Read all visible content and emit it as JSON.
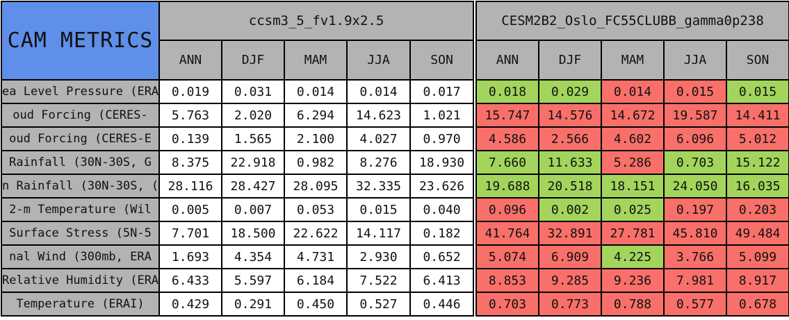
{
  "table": {
    "corner_label": "CAM METRICS",
    "seasons": [
      "ANN",
      "DJF",
      "MAM",
      "JJA",
      "SON"
    ],
    "row_labels": [
      "ea Level Pressure (ERA",
      "oud Forcing (CERES-",
      "oud Forcing (CERES-E",
      "Rainfall (30N-30S, G",
      "n Rainfall (30N-30S, (",
      "2-m Temperature (Wil",
      "Surface Stress (5N-5",
      "nal Wind (300mb, ERA",
      "Relative Humidity (ERAI",
      "Temperature (ERAI)"
    ],
    "model1": {
      "name": "ccsm3_5_fv1.9x2.5",
      "rows": [
        [
          "0.019",
          "0.031",
          "0.014",
          "0.014",
          "0.017"
        ],
        [
          "5.763",
          "2.020",
          "6.294",
          "14.623",
          "1.021"
        ],
        [
          "0.139",
          "1.565",
          "2.100",
          "4.027",
          "0.970"
        ],
        [
          "8.375",
          "22.918",
          "0.982",
          "8.276",
          "18.930"
        ],
        [
          "28.116",
          "28.427",
          "28.095",
          "32.335",
          "23.626"
        ],
        [
          "0.005",
          "0.007",
          "0.053",
          "0.015",
          "0.040"
        ],
        [
          "7.701",
          "18.500",
          "22.622",
          "14.117",
          "0.182"
        ],
        [
          "1.693",
          "4.354",
          "4.731",
          "2.930",
          "0.652"
        ],
        [
          "6.433",
          "5.597",
          "6.184",
          "7.522",
          "6.413"
        ],
        [
          "0.429",
          "0.291",
          "0.450",
          "0.527",
          "0.446"
        ]
      ]
    },
    "model2": {
      "name": "CESM2B2_Oslo_FC55CLUBB_gamma0p238",
      "rows": [
        [
          "0.018",
          "0.029",
          "0.014",
          "0.015",
          "0.015"
        ],
        [
          "15.747",
          "14.576",
          "14.672",
          "19.587",
          "14.411"
        ],
        [
          "4.586",
          "2.566",
          "4.602",
          "6.096",
          "5.012"
        ],
        [
          "7.660",
          "11.633",
          "5.286",
          "0.703",
          "15.122"
        ],
        [
          "19.688",
          "20.518",
          "18.151",
          "24.050",
          "16.035"
        ],
        [
          "0.096",
          "0.002",
          "0.025",
          "0.197",
          "0.203"
        ],
        [
          "41.764",
          "32.891",
          "27.781",
          "45.810",
          "49.484"
        ],
        [
          "5.074",
          "6.909",
          "4.225",
          "3.766",
          "5.099"
        ],
        [
          "8.853",
          "9.285",
          "9.236",
          "7.981",
          "8.917"
        ],
        [
          "0.703",
          "0.773",
          "0.788",
          "0.577",
          "0.678"
        ]
      ],
      "cell_colors": [
        [
          "g",
          "g",
          "r",
          "r",
          "g"
        ],
        [
          "r",
          "r",
          "r",
          "r",
          "r"
        ],
        [
          "r",
          "r",
          "r",
          "r",
          "r"
        ],
        [
          "g",
          "g",
          "r",
          "g",
          "g"
        ],
        [
          "g",
          "g",
          "g",
          "g",
          "g"
        ],
        [
          "r",
          "g",
          "g",
          "r",
          "r"
        ],
        [
          "r",
          "r",
          "r",
          "r",
          "r"
        ],
        [
          "r",
          "r",
          "g",
          "r",
          "r"
        ],
        [
          "r",
          "r",
          "r",
          "r",
          "r"
        ],
        [
          "r",
          "r",
          "r",
          "r",
          "r"
        ]
      ]
    }
  },
  "colors": {
    "header_bg": "#b3b3b3",
    "title_bg": "#5f8fe8",
    "good_bg": "#a3d55c",
    "bad_bg": "#f9706a",
    "neutral_bg": "#ffffff",
    "border": "#000000"
  },
  "chart_data": {
    "type": "table",
    "title": "CAM METRICS",
    "column_groups": [
      "ccsm3_5_fv1.9x2.5",
      "CESM2B2_Oslo_FC55CLUBB_gamma0p238"
    ],
    "columns": [
      "ANN",
      "DJF",
      "MAM",
      "JJA",
      "SON",
      "ANN",
      "DJF",
      "MAM",
      "JJA",
      "SON"
    ],
    "rows": [
      {
        "label": "ea Level Pressure (ERA",
        "values": [
          0.019,
          0.031,
          0.014,
          0.014,
          0.017,
          0.018,
          0.029,
          0.014,
          0.015,
          0.015
        ]
      },
      {
        "label": "oud Forcing (CERES-",
        "values": [
          5.763,
          2.02,
          6.294,
          14.623,
          1.021,
          15.747,
          14.576,
          14.672,
          19.587,
          14.411
        ]
      },
      {
        "label": "oud Forcing (CERES-E",
        "values": [
          0.139,
          1.565,
          2.1,
          4.027,
          0.97,
          4.586,
          2.566,
          4.602,
          6.096,
          5.012
        ]
      },
      {
        "label": "Rainfall (30N-30S, G",
        "values": [
          8.375,
          22.918,
          0.982,
          8.276,
          18.93,
          7.66,
          11.633,
          5.286,
          0.703,
          15.122
        ]
      },
      {
        "label": "n Rainfall (30N-30S, (",
        "values": [
          28.116,
          28.427,
          28.095,
          32.335,
          23.626,
          19.688,
          20.518,
          18.151,
          24.05,
          16.035
        ]
      },
      {
        "label": "2-m Temperature (Wil",
        "values": [
          0.005,
          0.007,
          0.053,
          0.015,
          0.04,
          0.096,
          0.002,
          0.025,
          0.197,
          0.203
        ]
      },
      {
        "label": "Surface Stress (5N-5",
        "values": [
          7.701,
          18.5,
          22.622,
          14.117,
          0.182,
          41.764,
          32.891,
          27.781,
          45.81,
          49.484
        ]
      },
      {
        "label": "nal Wind (300mb, ERA",
        "values": [
          1.693,
          4.354,
          4.731,
          2.93,
          0.652,
          5.074,
          6.909,
          4.225,
          3.766,
          5.099
        ]
      },
      {
        "label": "Relative Humidity (ERAI",
        "values": [
          6.433,
          5.597,
          6.184,
          7.522,
          6.413,
          8.853,
          9.285,
          9.236,
          7.981,
          8.917
        ]
      },
      {
        "label": "Temperature (ERAI)",
        "values": [
          0.429,
          0.291,
          0.45,
          0.527,
          0.446,
          0.703,
          0.773,
          0.788,
          0.577,
          0.678
        ]
      }
    ],
    "legend": "second model cells shaded green = better than first model, red = worse"
  }
}
